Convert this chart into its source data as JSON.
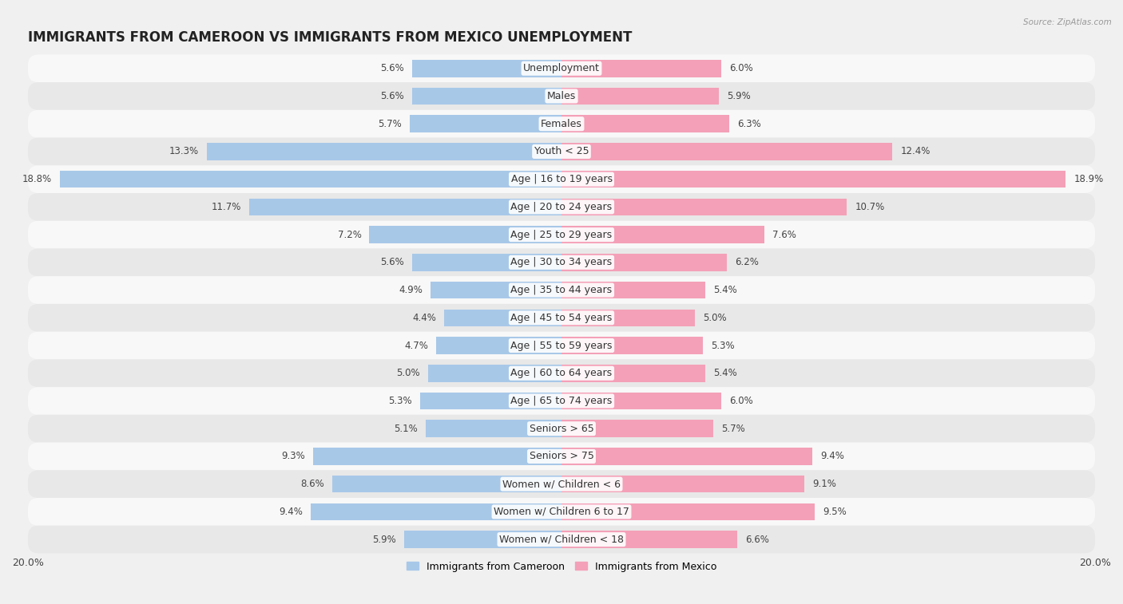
{
  "title": "IMMIGRANTS FROM CAMEROON VS IMMIGRANTS FROM MEXICO UNEMPLOYMENT",
  "source": "Source: ZipAtlas.com",
  "categories": [
    "Unemployment",
    "Males",
    "Females",
    "Youth < 25",
    "Age | 16 to 19 years",
    "Age | 20 to 24 years",
    "Age | 25 to 29 years",
    "Age | 30 to 34 years",
    "Age | 35 to 44 years",
    "Age | 45 to 54 years",
    "Age | 55 to 59 years",
    "Age | 60 to 64 years",
    "Age | 65 to 74 years",
    "Seniors > 65",
    "Seniors > 75",
    "Women w/ Children < 6",
    "Women w/ Children 6 to 17",
    "Women w/ Children < 18"
  ],
  "cameroon_values": [
    5.6,
    5.6,
    5.7,
    13.3,
    18.8,
    11.7,
    7.2,
    5.6,
    4.9,
    4.4,
    4.7,
    5.0,
    5.3,
    5.1,
    9.3,
    8.6,
    9.4,
    5.9
  ],
  "mexico_values": [
    6.0,
    5.9,
    6.3,
    12.4,
    18.9,
    10.7,
    7.6,
    6.2,
    5.4,
    5.0,
    5.3,
    5.4,
    6.0,
    5.7,
    9.4,
    9.1,
    9.5,
    6.6
  ],
  "cameroon_color": "#a8c8e8",
  "mexico_color": "#f4a0b8",
  "background_color": "#f0f0f0",
  "row_color_odd": "#f8f8f8",
  "row_color_even": "#e8e8e8",
  "max_value": 20.0,
  "legend_cameroon": "Immigrants from Cameroon",
  "legend_mexico": "Immigrants from Mexico",
  "title_fontsize": 12,
  "label_fontsize": 9,
  "value_fontsize": 8.5
}
